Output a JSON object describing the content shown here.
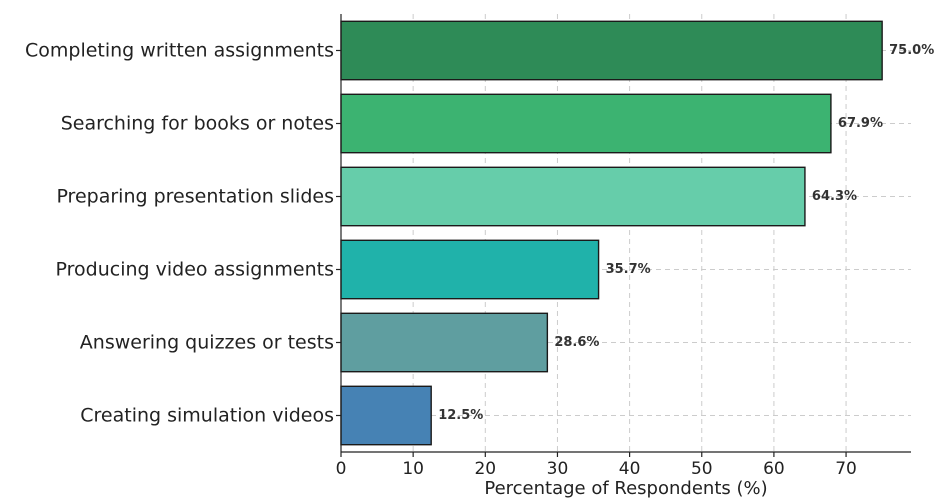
{
  "chart_data": {
    "type": "bar",
    "orientation": "horizontal",
    "categories": [
      "Completing written assignments",
      "Searching for books or notes",
      "Preparing presentation slides",
      "Producing video assignments",
      "Answering quizzes or tests",
      "Creating simulation videos"
    ],
    "values": [
      75.0,
      67.9,
      64.3,
      35.7,
      28.6,
      12.5
    ],
    "value_labels": [
      "75.0%",
      "67.9%",
      "64.3%",
      "35.7%",
      "28.6%",
      "12.5%"
    ],
    "colors": [
      "#2e8b57",
      "#3cb371",
      "#66cdaa",
      "#20b2aa",
      "#5f9ea0",
      "#4682b4"
    ],
    "title": "",
    "xlabel": "Percentage of Respondents (%)",
    "ylabel": "",
    "xlim": [
      0,
      79
    ],
    "xticks": [
      0,
      10,
      20,
      30,
      40,
      50,
      60,
      70
    ],
    "grid": true
  }
}
